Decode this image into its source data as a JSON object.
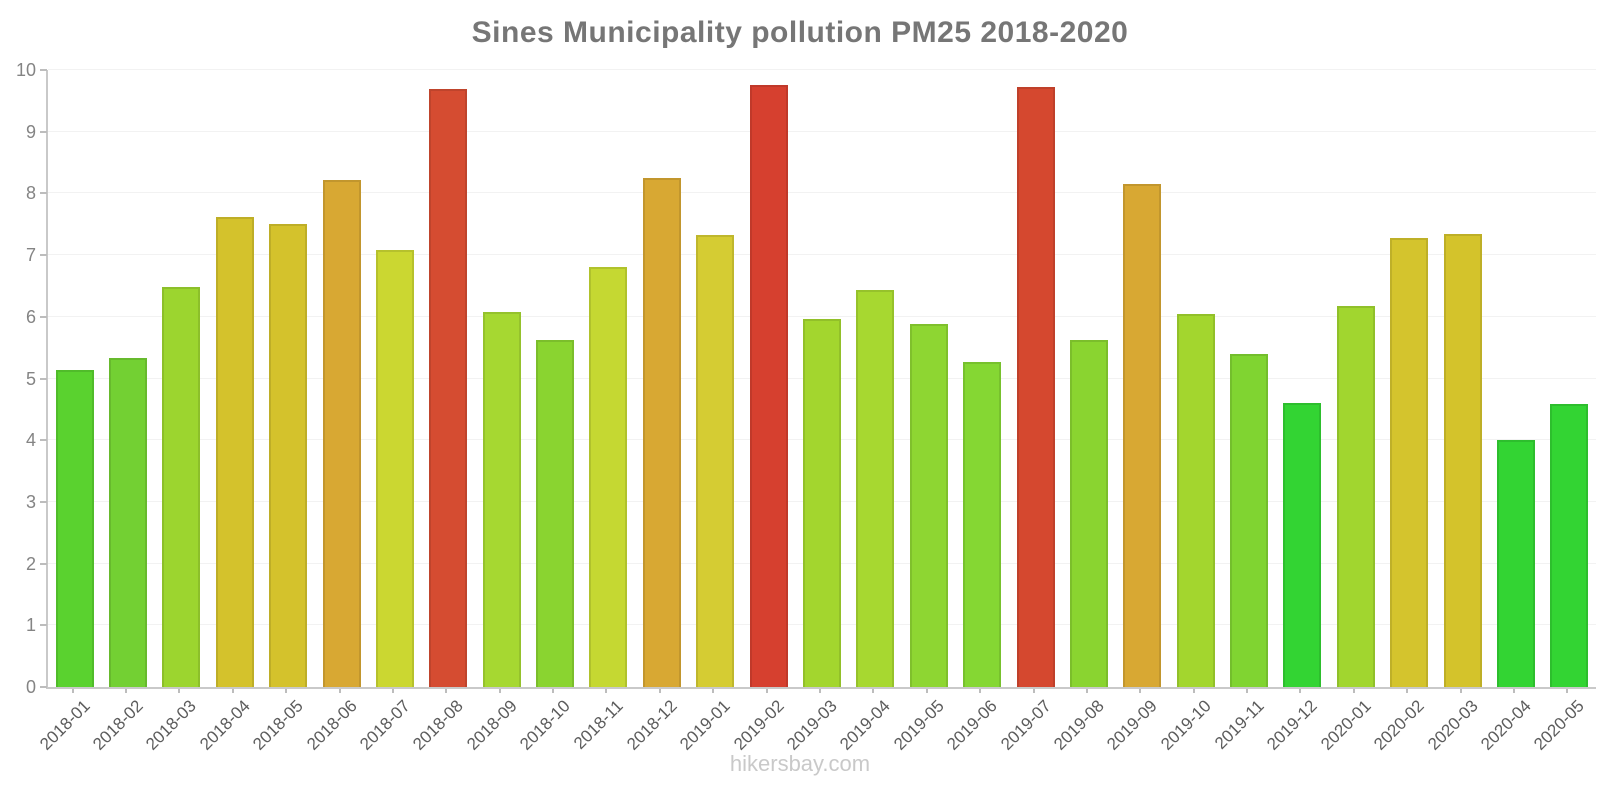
{
  "watermark": "hikersbay.com",
  "chart_data": {
    "type": "bar",
    "title": "Sines Municipality pollution PM25 2018-2020",
    "xlabel": "",
    "ylabel": "",
    "ylim": [
      0,
      10
    ],
    "y_ticks": [
      0,
      1,
      2,
      3,
      4,
      5,
      6,
      7,
      8,
      9,
      10
    ],
    "grid": "horizontal",
    "legend": "none",
    "categories": [
      "2018-01",
      "2018-02",
      "2018-03",
      "2018-04",
      "2018-05",
      "2018-06",
      "2018-07",
      "2018-08",
      "2018-09",
      "2018-10",
      "2018-11",
      "2018-12",
      "2019-01",
      "2019-02",
      "2019-03",
      "2019-04",
      "2019-05",
      "2019-06",
      "2019-07",
      "2019-08",
      "2019-09",
      "2019-10",
      "2019-11",
      "2019-12",
      "2020-01",
      "2020-02",
      "2020-03",
      "2020-04",
      "2020-05"
    ],
    "values": [
      5.13,
      5.33,
      6.48,
      7.62,
      7.5,
      8.22,
      7.08,
      9.7,
      6.08,
      5.63,
      6.81,
      8.25,
      7.32,
      9.75,
      5.97,
      6.44,
      5.88,
      5.27,
      9.72,
      5.62,
      8.16,
      6.05,
      5.4,
      4.6,
      6.17,
      7.28,
      7.35,
      4.0,
      4.58
    ],
    "bar_colors": [
      "#5ad22f",
      "#73d033",
      "#9cd52f",
      "#d4c22c",
      "#d4c22c",
      "#d8a833",
      "#cbd731",
      "#d54c31",
      "#a6d831",
      "#8ad430",
      "#c5d832",
      "#d8a833",
      "#d5cc33",
      "#d6402f",
      "#a3d62e",
      "#a7d830",
      "#8ed632",
      "#85d733",
      "#d5482f",
      "#8ad430",
      "#d8a833",
      "#a3d62e",
      "#80d431",
      "#33d433",
      "#a1d62f",
      "#d4c42d",
      "#d4c32b",
      "#33d433",
      "#33d433"
    ],
    "axis_color": "#c9c9c9",
    "grid_color": "#f2f2f2",
    "title_color": "#767676",
    "tick_label_color": "#5c5c5c"
  }
}
